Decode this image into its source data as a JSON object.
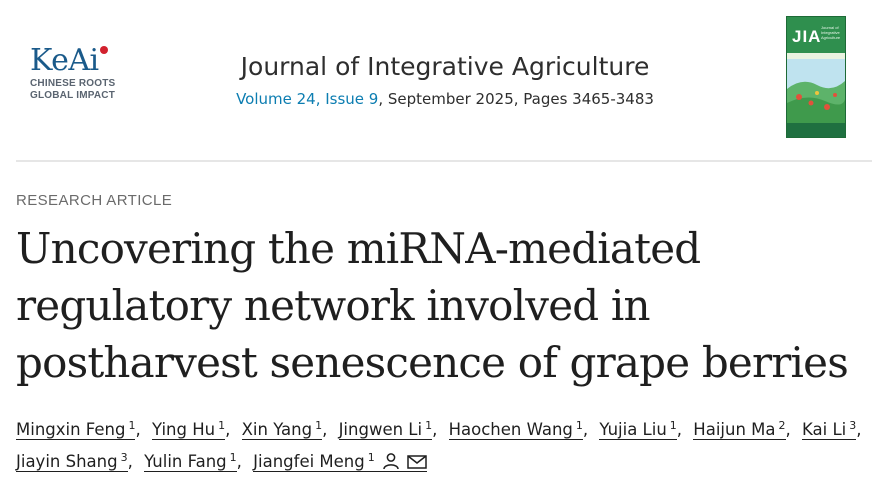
{
  "publisher": {
    "name": "KeAi",
    "tagline": [
      "CHINESE ROOTS",
      "GLOBAL IMPACT"
    ],
    "brand_color": "#1a5a8a",
    "accent_color": "#d2212e"
  },
  "journal": {
    "title": "Journal of Integrative Agriculture",
    "issue_link": "Volume 24, Issue 9",
    "issue_rest": ", September 2025, Pages 3465-3483",
    "link_color": "#0c7db1"
  },
  "cover": {
    "abbr": "JIA",
    "name": "Journal of Integrative Agriculture"
  },
  "article": {
    "type": "RESEARCH ARTICLE",
    "title_lines": [
      "Uncovering the miRNA-mediated",
      "regulatory network involved in",
      "postharvest senescence of grape berries"
    ]
  },
  "authors": [
    {
      "name": "Mingxin Feng",
      "sup": "1"
    },
    {
      "name": "Ying Hu",
      "sup": "1"
    },
    {
      "name": "Xin Yang",
      "sup": "1"
    },
    {
      "name": "Jingwen Li",
      "sup": "1"
    },
    {
      "name": "Haochen Wang",
      "sup": "1"
    },
    {
      "name": "Yujia Liu",
      "sup": "1"
    },
    {
      "name": "Haijun Ma",
      "sup": "2"
    },
    {
      "name": "Kai Li",
      "sup": "3"
    },
    {
      "name": "Jiayin Shang",
      "sup": "3"
    },
    {
      "name": "Yulin Fang",
      "sup": "1"
    },
    {
      "name": "Jiangfei Meng",
      "sup": "1"
    }
  ],
  "icons": {
    "corresponding_author": "person-icon",
    "email": "envelope-icon"
  }
}
